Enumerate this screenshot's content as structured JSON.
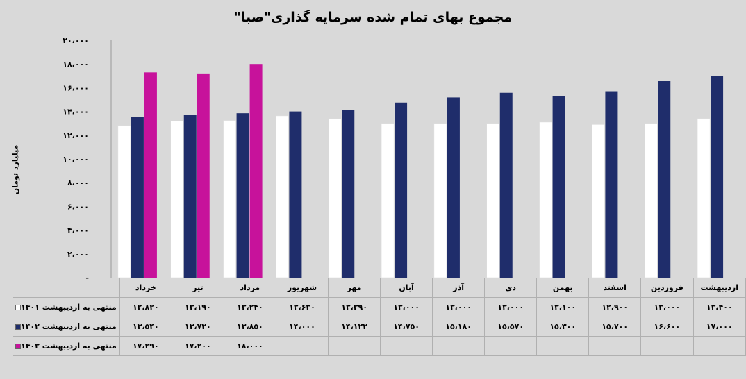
{
  "chart_data": {
    "type": "bar",
    "title": "مجموع بهای تمام شده سرمایه گذاری\"صبا\"",
    "ylabel": "میلیارد تومان",
    "ylim": [
      0,
      20000
    ],
    "yticks": [
      "-",
      "۲،۰۰۰",
      "۴،۰۰۰",
      "۶،۰۰۰",
      "۸،۰۰۰",
      "۱۰،۰۰۰",
      "۱۲،۰۰۰",
      "۱۴،۰۰۰",
      "۱۶،۰۰۰",
      "۱۸،۰۰۰",
      "۲۰،۰۰۰"
    ],
    "categories": [
      "خرداد",
      "تیر",
      "مرداد",
      "شهریور",
      "مهر",
      "آبان",
      "آذر",
      "دی",
      "بهمن",
      "اسفند",
      "فروردین",
      "اردیبهشت"
    ],
    "series": [
      {
        "name": "منتهی به اردیبهشت ۱۴۰۱",
        "color": "#ffffff",
        "values": [
          12820,
          13190,
          13240,
          13630,
          13390,
          13000,
          13000,
          13000,
          13100,
          12900,
          13000,
          13400
        ],
        "labels": [
          "۱۲،۸۲۰",
          "۱۳،۱۹۰",
          "۱۳،۲۴۰",
          "۱۳،۶۳۰",
          "۱۳،۳۹۰",
          "۱۳،۰۰۰",
          "۱۳،۰۰۰",
          "۱۳،۰۰۰",
          "۱۳،۱۰۰",
          "۱۲،۹۰۰",
          "۱۳،۰۰۰",
          "۱۳،۴۰۰"
        ]
      },
      {
        "name": "منتهی به اردیبهشت ۱۴۰۲",
        "color": "#1f2d6b",
        "values": [
          13540,
          13720,
          13850,
          14000,
          14122,
          14750,
          15180,
          15570,
          15300,
          15700,
          16600,
          17000
        ],
        "labels": [
          "۱۳،۵۴۰",
          "۱۳،۷۲۰",
          "۱۳،۸۵۰",
          "۱۴،۰۰۰",
          "۱۴،۱۲۲",
          "۱۴،۷۵۰",
          "۱۵،۱۸۰",
          "۱۵،۵۷۰",
          "۱۵،۳۰۰",
          "۱۵،۷۰۰",
          "۱۶،۶۰۰",
          "۱۷،۰۰۰"
        ]
      },
      {
        "name": "منتهی به اردیبهشت  ۱۴۰۳",
        "color": "#c7129b",
        "values": [
          17290,
          17200,
          18000,
          null,
          null,
          null,
          null,
          null,
          null,
          null,
          null,
          null
        ],
        "labels": [
          "۱۷،۲۹۰",
          "۱۷،۲۰۰",
          "۱۸،۰۰۰",
          "",
          "",
          "",
          "",
          "",
          "",
          "",
          "",
          ""
        ]
      }
    ],
    "grid": false,
    "legend": "table-left"
  }
}
